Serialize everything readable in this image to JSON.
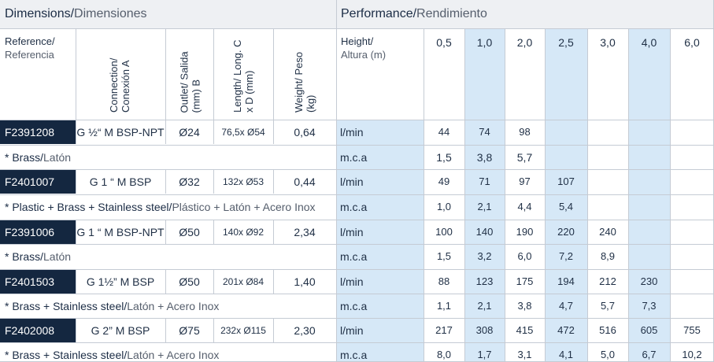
{
  "header": {
    "dimensions_en": "Dimensions/",
    "dimensions_es": " Dimensiones",
    "performance_en": "Performance/",
    "performance_es": " Rendimiento"
  },
  "columns": {
    "reference_en": "Reference/",
    "reference_es": "Referencia",
    "connection_en": "Connection/",
    "connection_es": "Conexión A",
    "outlet_line1": "Outlet/ Salida",
    "outlet_line2": "(mm) B",
    "length_line1": "Length/ Long. C",
    "length_line2": "x D (mm)",
    "weight_line1": "Weight/ Peso",
    "weight_line2": "(kg)",
    "height_en": "Height/",
    "height_es": "Altura (m)"
  },
  "heights": [
    "0,5",
    "1,0",
    "2,0",
    "2,5",
    "3,0",
    "4,0",
    "6,0"
  ],
  "products": [
    {
      "ref": "F2391208",
      "connection": "G ½“ M BSP-NPT",
      "outlet": "Ø24",
      "length": "76,5x Ø54",
      "weight": "0,64",
      "material_en": "* Brass/",
      "material_es": " Latón",
      "unit_flow": "l/min",
      "unit_pressure": "m.c.a",
      "flow": [
        "44",
        "74",
        "98",
        "",
        "",
        "",
        ""
      ],
      "pressure": [
        "1,5",
        "3,8",
        "5,7",
        "",
        "",
        "",
        ""
      ]
    },
    {
      "ref": "F2401007",
      "connection": "G 1 “ M BSP",
      "outlet": "Ø32",
      "length": "132x Ø53",
      "weight": "0,44",
      "material_en": "* Plastic + Brass + Stainless steel/",
      "material_es": " Plástico + Latón + Acero Inox",
      "unit_flow": "l/min",
      "unit_pressure": "m.c.a",
      "flow": [
        "49",
        "71",
        "97",
        "107",
        "",
        "",
        ""
      ],
      "pressure": [
        "1,0",
        "2,1",
        "4,4",
        "5,4",
        "",
        "",
        ""
      ]
    },
    {
      "ref": "F2391006",
      "connection": "G 1 “ M BSP-NPT",
      "outlet": "Ø50",
      "length": "140x Ø92",
      "weight": "2,34",
      "material_en": "* Brass/",
      "material_es": " Latón",
      "unit_flow": "l/min",
      "unit_pressure": "m.c.a",
      "flow": [
        "100",
        "140",
        "190",
        "220",
        "240",
        "",
        ""
      ],
      "pressure": [
        "1,5",
        "3,2",
        "6,0",
        "7,2",
        "8,9",
        "",
        ""
      ]
    },
    {
      "ref": "F2401503",
      "connection": "G 1½” M BSP",
      "outlet": "Ø50",
      "length": "201x Ø84",
      "weight": "1,40",
      "material_en": "* Brass + Stainless steel/",
      "material_es": " Latón + Acero Inox",
      "unit_flow": "l/min",
      "unit_pressure": "m.c.a",
      "flow": [
        "88",
        "123",
        "175",
        "194",
        "212",
        "230",
        ""
      ],
      "pressure": [
        "1,1",
        "2,1",
        "3,8",
        "4,7",
        "5,7",
        "7,3",
        ""
      ]
    },
    {
      "ref": "F2402008",
      "connection": "G 2” M BSP",
      "outlet": "Ø75",
      "length": "232x Ø115",
      "weight": "2,30",
      "material_en": "* Brass + Stainless steel/",
      "material_es": " Latón + Acero Inox",
      "unit_flow": "l/min",
      "unit_pressure": "m.c.a",
      "flow": [
        "217",
        "308",
        "415",
        "472",
        "516",
        "605",
        "755"
      ],
      "pressure": [
        "8,0",
        "1,7",
        "3,1",
        "4,1",
        "5,0",
        "6,7",
        "10,2"
      ]
    }
  ]
}
